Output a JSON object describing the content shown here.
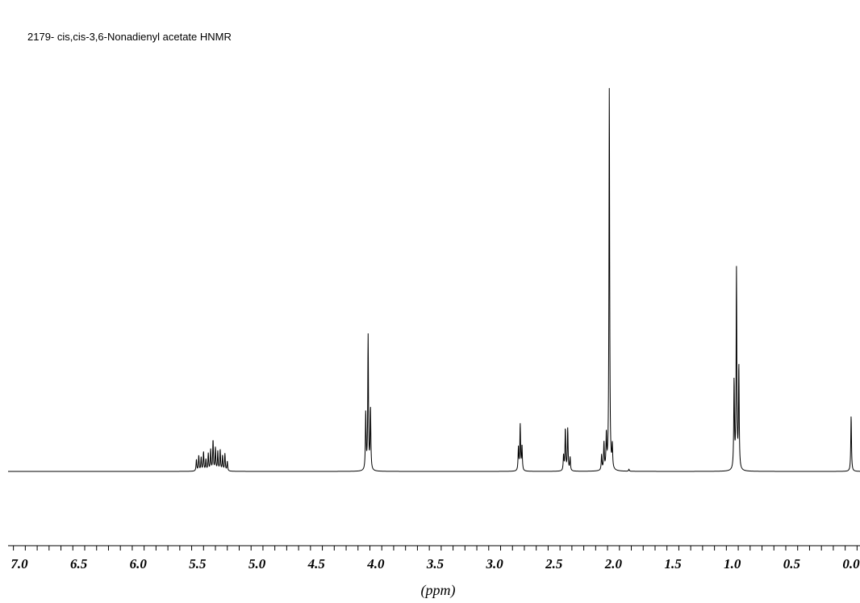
{
  "chart_data": {
    "type": "line",
    "title": "2179- cis,cis-3,6-Nonadienyl acetate HNMR",
    "xlabel": "(ppm)",
    "ylabel": "",
    "xlim": [
      7.2,
      -0.05
    ],
    "x_reversed": true,
    "ylim": [
      0,
      1
    ],
    "grid": false,
    "x_ticks": [
      7.0,
      6.5,
      6.0,
      5.5,
      5.0,
      4.5,
      4.0,
      3.5,
      3.0,
      2.5,
      2.0,
      1.5,
      1.0,
      0.5,
      0.0
    ],
    "x_tick_labels": [
      "7.0",
      "6.5",
      "6.0",
      "5.5",
      "5.0",
      "4.5",
      "4.0",
      "3.5",
      "3.0",
      "2.5",
      "2.0",
      "1.5",
      "1.0",
      "0.5",
      "0.0"
    ],
    "peaks": [
      {
        "ppm": 5.51,
        "intensity": 0.03
      },
      {
        "ppm": 5.49,
        "intensity": 0.04
      },
      {
        "ppm": 5.47,
        "intensity": 0.035
      },
      {
        "ppm": 5.45,
        "intensity": 0.05
      },
      {
        "ppm": 5.43,
        "intensity": 0.03
      },
      {
        "ppm": 5.41,
        "intensity": 0.045
      },
      {
        "ppm": 5.39,
        "intensity": 0.055
      },
      {
        "ppm": 5.37,
        "intensity": 0.08
      },
      {
        "ppm": 5.35,
        "intensity": 0.06
      },
      {
        "ppm": 5.33,
        "intensity": 0.05
      },
      {
        "ppm": 5.31,
        "intensity": 0.055
      },
      {
        "ppm": 5.29,
        "intensity": 0.04
      },
      {
        "ppm": 5.27,
        "intensity": 0.045
      },
      {
        "ppm": 5.25,
        "intensity": 0.025
      },
      {
        "ppm": 4.085,
        "intensity": 0.15
      },
      {
        "ppm": 4.065,
        "intensity": 0.35
      },
      {
        "ppm": 4.045,
        "intensity": 0.16
      },
      {
        "ppm": 2.8,
        "intensity": 0.06
      },
      {
        "ppm": 2.785,
        "intensity": 0.12
      },
      {
        "ppm": 2.77,
        "intensity": 0.065
      },
      {
        "ppm": 2.42,
        "intensity": 0.04
      },
      {
        "ppm": 2.405,
        "intensity": 0.11
      },
      {
        "ppm": 2.385,
        "intensity": 0.11
      },
      {
        "ppm": 2.365,
        "intensity": 0.035
      },
      {
        "ppm": 2.1,
        "intensity": 0.04
      },
      {
        "ppm": 2.08,
        "intensity": 0.07
      },
      {
        "ppm": 2.06,
        "intensity": 0.09
      },
      {
        "ppm": 2.035,
        "intensity": 1.0
      },
      {
        "ppm": 2.01,
        "intensity": 0.06
      },
      {
        "ppm": 1.87,
        "intensity": 0.005
      },
      {
        "ppm": 0.985,
        "intensity": 0.23
      },
      {
        "ppm": 0.965,
        "intensity": 0.52
      },
      {
        "ppm": 0.945,
        "intensity": 0.27
      },
      {
        "ppm": 0.0,
        "intensity": 0.145
      }
    ]
  }
}
